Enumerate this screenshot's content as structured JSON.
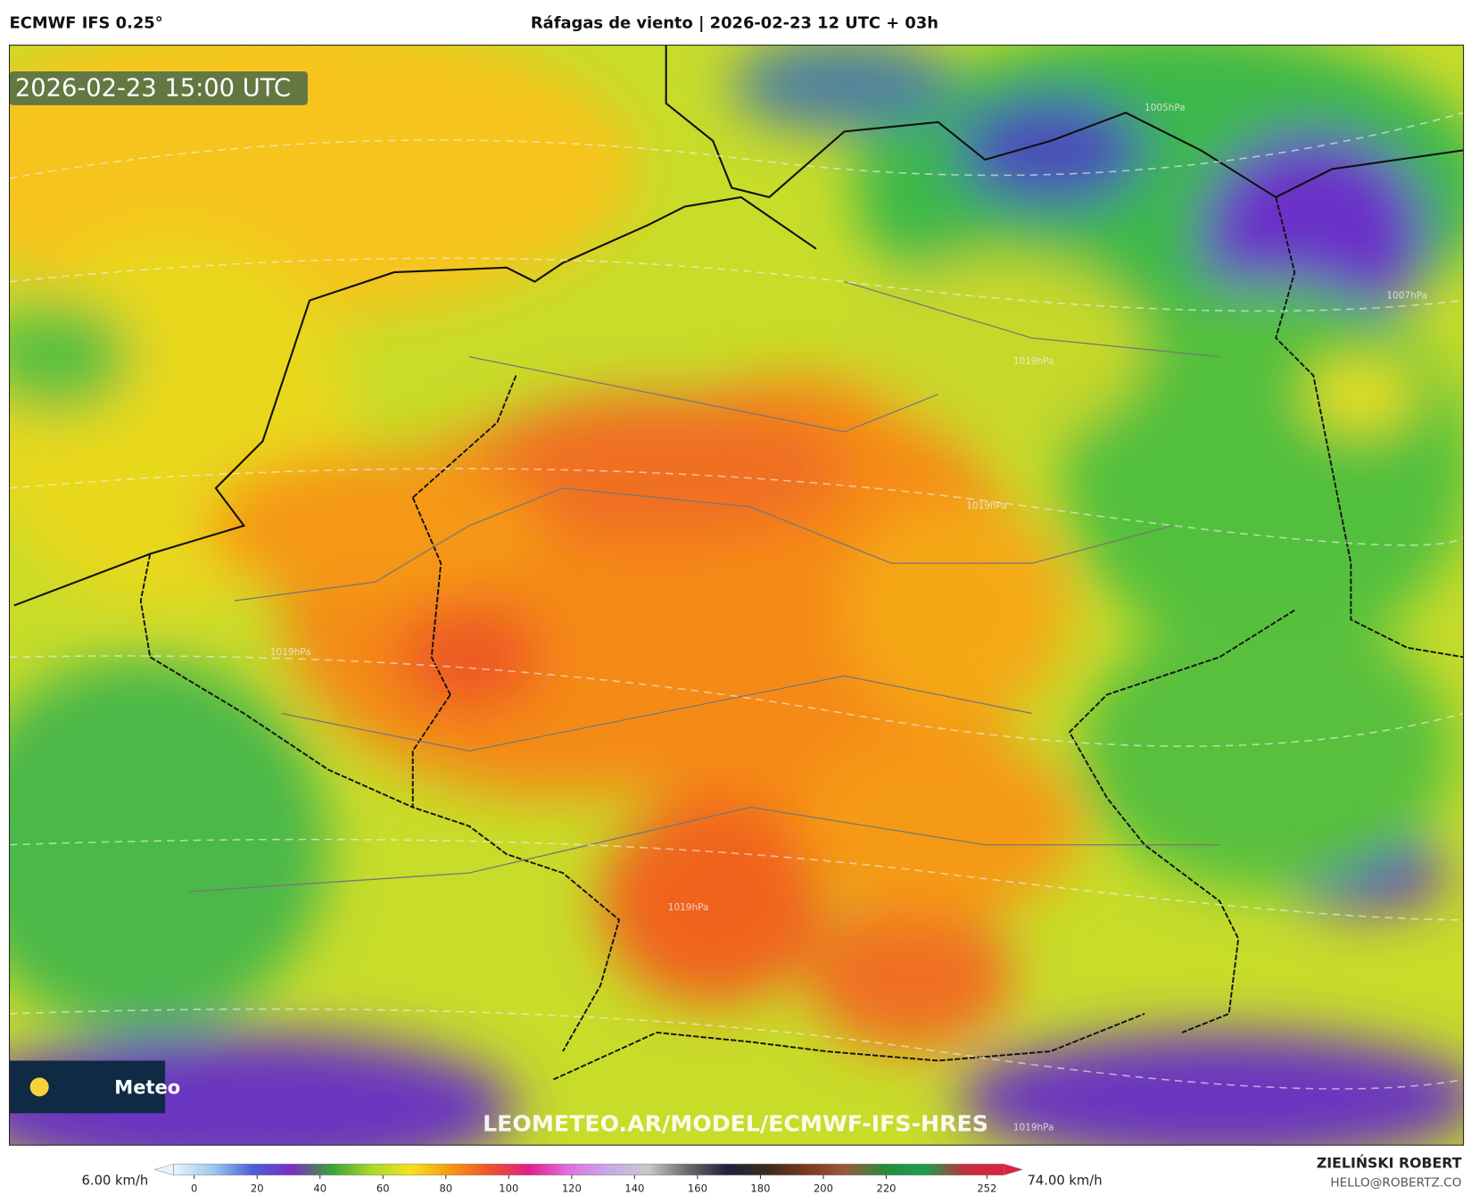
{
  "header": {
    "model": "ECMWF IFS 0.25°",
    "title": "Ráfagas de viento | 2026-02-23 12 UTC + 03h"
  },
  "map": {
    "timestamp": "2026-02-23 15:00 UTC",
    "logo": "Meteo",
    "watermark": "LEOMETEO.AR/MODEL/ECMWF-IFS-HRES",
    "isobars": [
      "1005hPa",
      "1007hPa",
      "1019hPa",
      "1019hPa",
      "1019hPa",
      "1019hPa",
      "1019hPa"
    ]
  },
  "colorbar": {
    "min_label": "6.00 km/h",
    "max_label": "74.00 km/h",
    "lim": [
      0,
      252
    ],
    "ticks": [
      0,
      20,
      40,
      60,
      80,
      100,
      120,
      140,
      160,
      180,
      200,
      220,
      252
    ],
    "colors": [
      "#e8f4fb",
      "#9cc9f0",
      "#4a5fd8",
      "#7b2fc0",
      "#3aa23a",
      "#a8d82a",
      "#f4e21a",
      "#f59a12",
      "#f0502a",
      "#e0208a",
      "#e070e0",
      "#c8a8e8",
      "#c8c8c8",
      "#6a6a6a",
      "#202040",
      "#3a2a1a",
      "#7a3a1a",
      "#9a5a3a",
      "#2a8a3a",
      "#1aa050",
      "#c03040",
      "#e02040"
    ]
  },
  "footer": {
    "author": "ZIELIŃSKI ROBERT",
    "email": "HELLO@ROBERTZ.CO"
  }
}
